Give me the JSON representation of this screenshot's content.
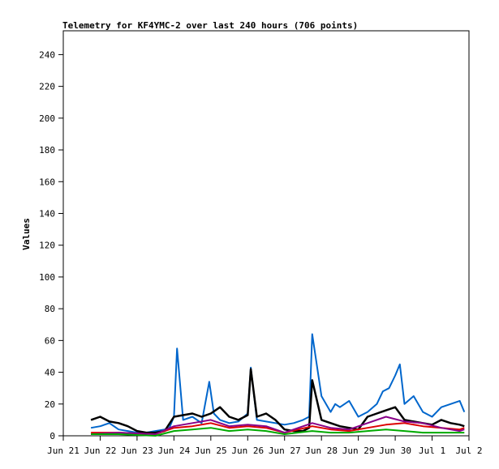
{
  "chart_data": {
    "type": "line",
    "title": "Telemetry for KF4YMC-2 over last 240 hours (706 points)",
    "xlabel": "",
    "ylabel": "Values",
    "xlim": [
      "Jun 21",
      "Jul 2"
    ],
    "ylim": [
      0,
      255
    ],
    "x_ticks": [
      "Jun 21",
      "Jun 22",
      "Jun 23",
      "Jun 24",
      "Jun 25",
      "Jun 26",
      "Jun 27",
      "Jun 28",
      "Jun 29",
      "Jun 30",
      "Jul 1",
      "Jul 2"
    ],
    "y_ticks": [
      0,
      20,
      40,
      60,
      80,
      100,
      120,
      140,
      160,
      180,
      200,
      220,
      240
    ],
    "grid": false,
    "legend": "none",
    "colors": {
      "blue": "#0066cc",
      "black": "#000000",
      "green": "#00aa00",
      "red": "#dd0000",
      "purple": "#880088"
    },
    "series": [
      {
        "color": "blue",
        "x": [
          "2024-06-21T18:00",
          "2024-06-22T00:00",
          "2024-06-22T06:00",
          "2024-06-22T12:00",
          "2024-06-22T18:00",
          "2024-06-23T00:00",
          "2024-06-23T06:00",
          "2024-06-23T12:00",
          "2024-06-23T18:00",
          "2024-06-23T21:00",
          "2024-06-24T00:00",
          "2024-06-24T02:00",
          "2024-06-24T06:00",
          "2024-06-24T12:00",
          "2024-06-24T18:00",
          "2024-06-24T23:00",
          "2024-06-25T02:00",
          "2024-06-25T06:00",
          "2024-06-25T12:00",
          "2024-06-25T18:00",
          "2024-06-26T00:00",
          "2024-06-26T02:00",
          "2024-06-26T06:00",
          "2024-06-26T12:00",
          "2024-06-26T18:00",
          "2024-06-27T00:00",
          "2024-06-27T06:00",
          "2024-06-27T12:00",
          "2024-06-27T16:00",
          "2024-06-27T18:00",
          "2024-06-28T00:00",
          "2024-06-28T06:00",
          "2024-06-28T09:00",
          "2024-06-28T12:00",
          "2024-06-28T18:00",
          "2024-06-29T00:00",
          "2024-06-29T06:00",
          "2024-06-29T12:00",
          "2024-06-29T16:00",
          "2024-06-29T20:00",
          "2024-06-30T00:00",
          "2024-06-30T03:00",
          "2024-06-30T06:00",
          "2024-06-30T12:00",
          "2024-06-30T18:00",
          "2024-07-01T00:00",
          "2024-07-01T06:00",
          "2024-07-01T12:00",
          "2024-07-01T18:00",
          "2024-07-01T21:00"
        ],
        "values": [
          5,
          6,
          8,
          4,
          3,
          2,
          2,
          3,
          4,
          5,
          12,
          55,
          10,
          12,
          8,
          34,
          14,
          10,
          8,
          9,
          14,
          43,
          10,
          9,
          8,
          7,
          8,
          10,
          12,
          64,
          25,
          15,
          20,
          18,
          22,
          12,
          15,
          20,
          28,
          30,
          38,
          45,
          20,
          25,
          15,
          12,
          18,
          20,
          22,
          15
        ]
      },
      {
        "color": "black",
        "x": [
          "2024-06-21T18:00",
          "2024-06-22T00:00",
          "2024-06-22T06:00",
          "2024-06-22T12:00",
          "2024-06-22T18:00",
          "2024-06-23T00:00",
          "2024-06-23T06:00",
          "2024-06-23T12:00",
          "2024-06-23T18:00",
          "2024-06-24T00:00",
          "2024-06-24T06:00",
          "2024-06-24T12:00",
          "2024-06-24T18:00",
          "2024-06-25T00:00",
          "2024-06-25T06:00",
          "2024-06-25T12:00",
          "2024-06-25T18:00",
          "2024-06-26T00:00",
          "2024-06-26T02:00",
          "2024-06-26T06:00",
          "2024-06-26T12:00",
          "2024-06-26T18:00",
          "2024-06-27T00:00",
          "2024-06-27T06:00",
          "2024-06-27T12:00",
          "2024-06-27T16:00",
          "2024-06-27T18:00",
          "2024-06-28T00:00",
          "2024-06-28T06:00",
          "2024-06-28T12:00",
          "2024-06-28T18:00",
          "2024-06-29T00:00",
          "2024-06-29T06:00",
          "2024-06-29T12:00",
          "2024-06-29T18:00",
          "2024-06-30T00:00",
          "2024-06-30T06:00",
          "2024-06-30T12:00",
          "2024-06-30T18:00",
          "2024-07-01T00:00",
          "2024-07-01T06:00",
          "2024-07-01T12:00",
          "2024-07-01T18:00",
          "2024-07-01T21:00"
        ],
        "values": [
          10,
          12,
          9,
          8,
          6,
          3,
          2,
          2,
          3,
          12,
          13,
          14,
          12,
          14,
          18,
          12,
          10,
          13,
          42,
          12,
          14,
          10,
          4,
          3,
          3,
          5,
          35,
          10,
          8,
          6,
          5,
          4,
          12,
          14,
          16,
          18,
          10,
          9,
          8,
          7,
          10,
          8,
          7,
          6
        ]
      },
      {
        "color": "red",
        "x": [
          "2024-06-21T18:00",
          "2024-06-22T12:00",
          "2024-06-23T12:00",
          "2024-06-24T00:00",
          "2024-06-24T12:00",
          "2024-06-25T00:00",
          "2024-06-25T12:00",
          "2024-06-26T00:00",
          "2024-06-26T12:00",
          "2024-06-27T00:00",
          "2024-06-27T18:00",
          "2024-06-28T06:00",
          "2024-06-28T18:00",
          "2024-06-29T06:00",
          "2024-06-29T18:00",
          "2024-06-30T06:00",
          "2024-06-30T18:00",
          "2024-07-01T06:00",
          "2024-07-01T18:00",
          "2024-07-01T21:00"
        ],
        "values": [
          2,
          2,
          1,
          5,
          6,
          8,
          5,
          6,
          5,
          2,
          6,
          4,
          3,
          5,
          7,
          8,
          6,
          5,
          4,
          5
        ]
      },
      {
        "color": "purple",
        "x": [
          "2024-06-21T18:00",
          "2024-06-22T12:00",
          "2024-06-23T12:00",
          "2024-06-24T00:00",
          "2024-06-24T12:00",
          "2024-06-25T00:00",
          "2024-06-25T12:00",
          "2024-06-26T00:00",
          "2024-06-26T12:00",
          "2024-06-27T00:00",
          "2024-06-27T18:00",
          "2024-06-28T06:00",
          "2024-06-28T18:00",
          "2024-06-29T06:00",
          "2024-06-29T18:00",
          "2024-06-30T06:00",
          "2024-06-30T18:00",
          "2024-07-01T06:00",
          "2024-07-01T18:00",
          "2024-07-01T21:00"
        ],
        "values": [
          1,
          2,
          1,
          6,
          8,
          10,
          6,
          7,
          6,
          2,
          8,
          5,
          4,
          8,
          12,
          9,
          8,
          5,
          3,
          4
        ]
      },
      {
        "color": "green",
        "x": [
          "2024-06-21T18:00",
          "2024-06-22T12:00",
          "2024-06-23T12:00",
          "2024-06-24T00:00",
          "2024-06-24T12:00",
          "2024-06-25T00:00",
          "2024-06-25T12:00",
          "2024-06-26T00:00",
          "2024-06-26T12:00",
          "2024-06-27T00:00",
          "2024-06-27T18:00",
          "2024-06-28T06:00",
          "2024-06-28T18:00",
          "2024-06-29T06:00",
          "2024-06-29T18:00",
          "2024-06-30T06:00",
          "2024-06-30T18:00",
          "2024-07-01T06:00",
          "2024-07-01T18:00",
          "2024-07-01T21:00"
        ],
        "values": [
          1,
          1,
          0,
          3,
          4,
          5,
          3,
          4,
          3,
          1,
          3,
          2,
          2,
          3,
          4,
          3,
          2,
          2,
          2,
          2
        ]
      }
    ]
  }
}
